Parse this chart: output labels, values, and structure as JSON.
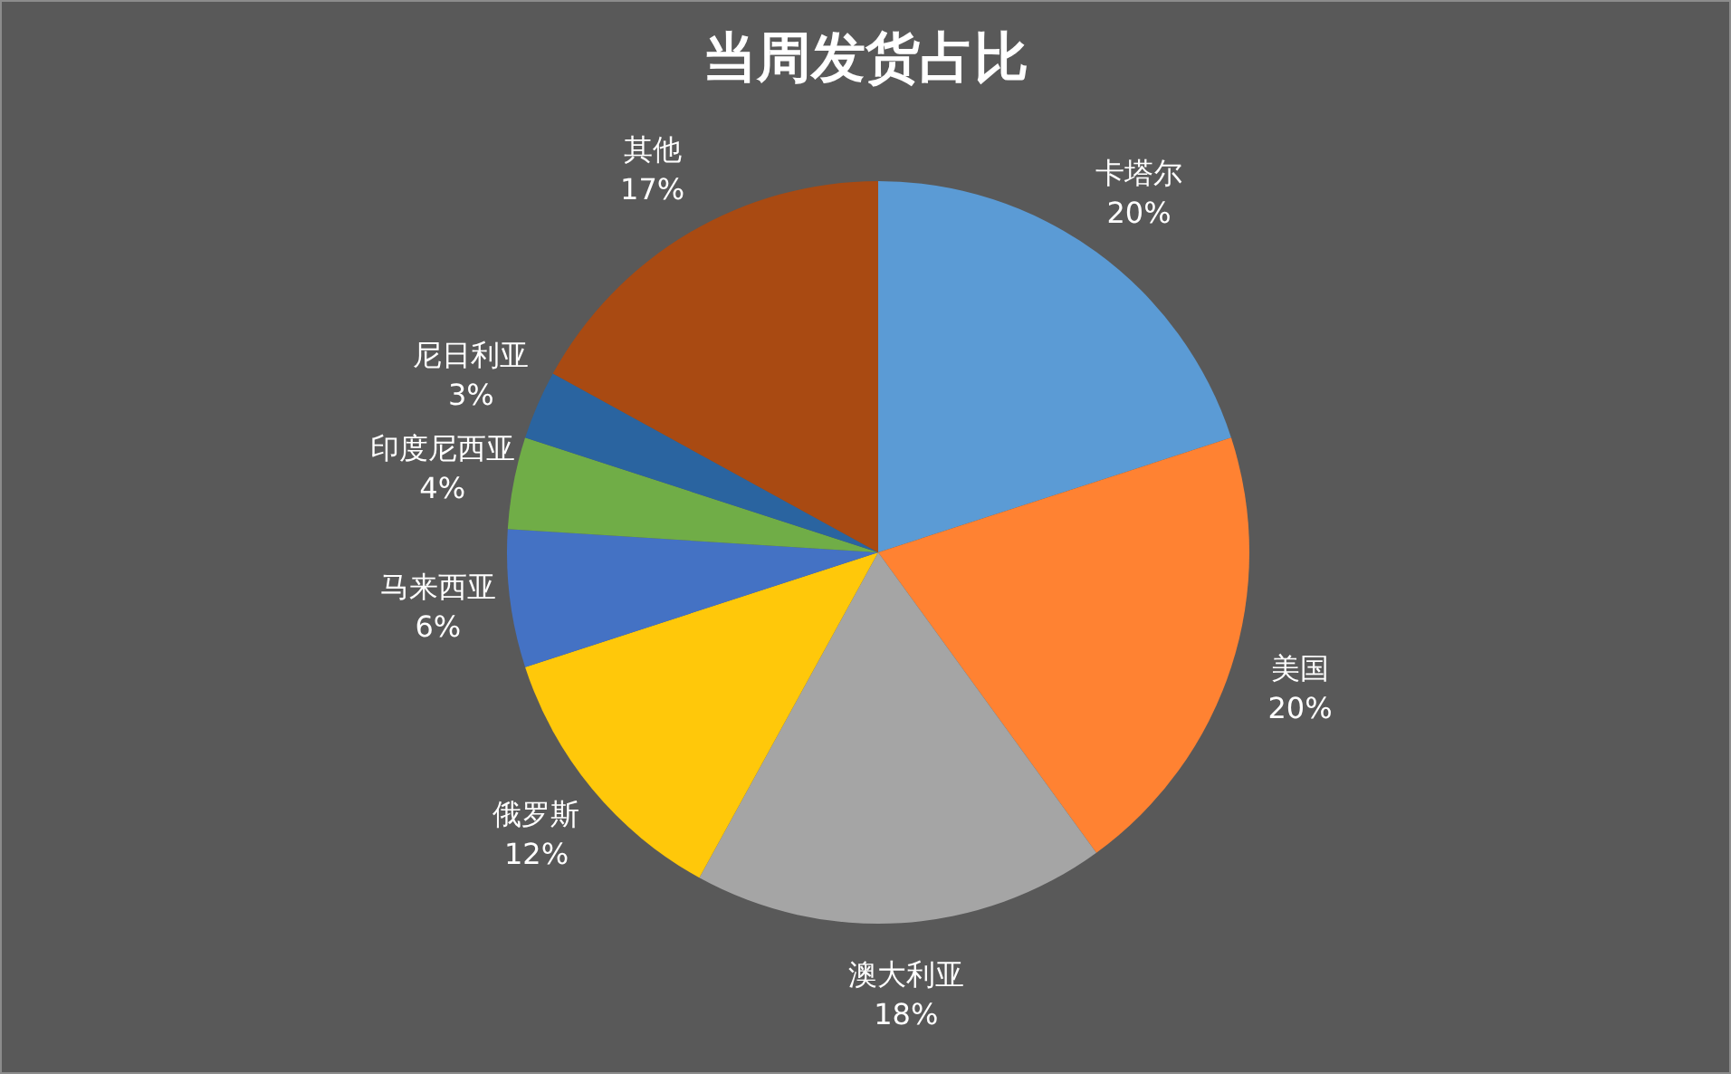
{
  "chart_data": {
    "type": "pie",
    "title": "当周发货占比",
    "categories": [
      "卡塔尔",
      "美国",
      "澳大利亚",
      "俄罗斯",
      "马来西亚",
      "印度尼西亚",
      "尼日利亚",
      "其他"
    ],
    "values": [
      20,
      20,
      18,
      12,
      6,
      4,
      3,
      17
    ],
    "value_labels": [
      "20%",
      "20%",
      "18%",
      "12%",
      "6%",
      "4%",
      "3%",
      "17%"
    ],
    "colors": [
      "#5b9bd5",
      "#ff8232",
      "#a5a5a5",
      "#ffc80a",
      "#4472c4",
      "#70ad47",
      "#2a64a0",
      "#a94a12"
    ]
  }
}
